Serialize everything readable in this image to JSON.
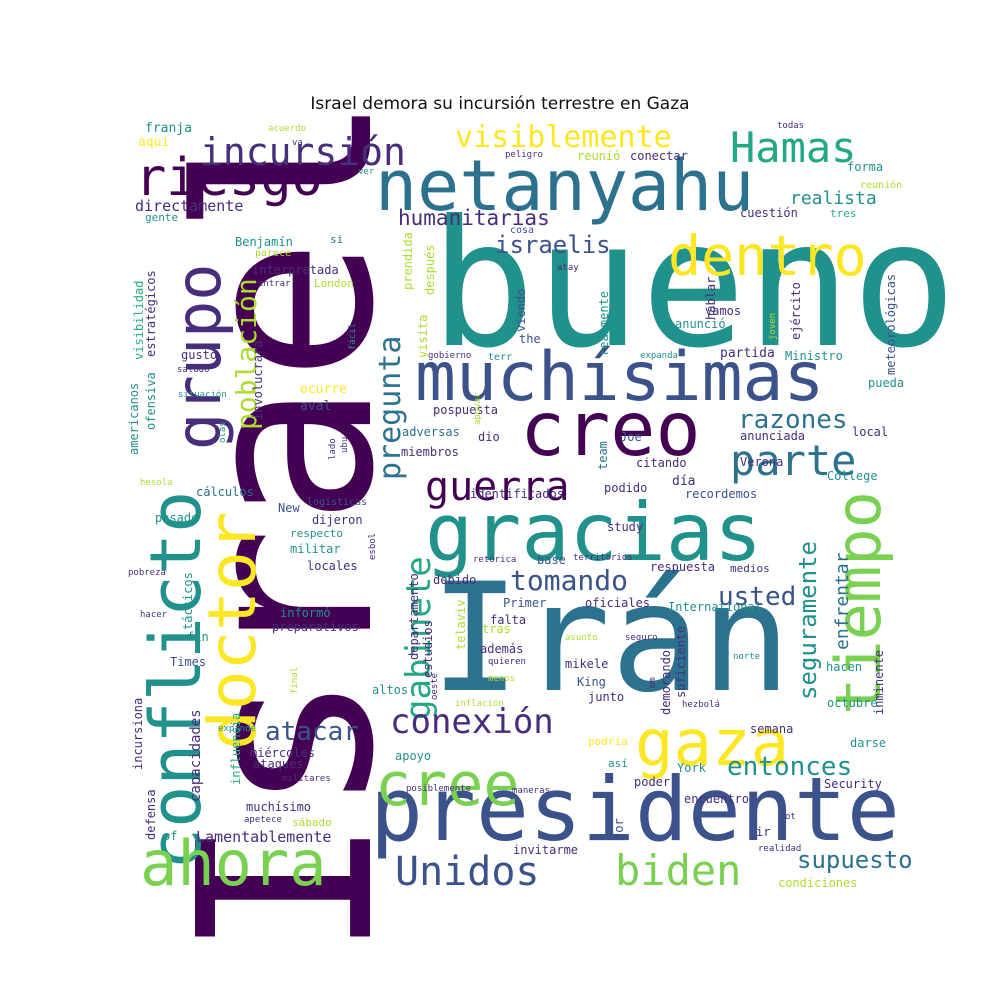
{
  "title": "Israel demora su incursión terrestre en Gaza",
  "palette": [
    "#440154",
    "#472d7b",
    "#3b528b",
    "#2c728e",
    "#21918c",
    "#28ae80",
    "#5ec962",
    "#addc30",
    "#fde725"
  ],
  "words": [
    {
      "t": "Israel",
      "c": "#440154"
    },
    {
      "t": "bueno",
      "c": "#21918c"
    },
    {
      "t": "Irán",
      "c": "#2c728e"
    },
    {
      "t": "presidente",
      "c": "#3b528b"
    },
    {
      "t": "gracias",
      "c": "#21918c"
    },
    {
      "t": "muchísimas",
      "c": "#3b528b"
    },
    {
      "t": "netanyahu",
      "c": "#2c728e"
    },
    {
      "t": "creo",
      "c": "#440154"
    },
    {
      "t": "conflicto",
      "c": "#21918c"
    },
    {
      "t": "doctor",
      "c": "#fde725"
    },
    {
      "t": "grupo",
      "c": "#472d7b"
    },
    {
      "t": "ahora",
      "c": "#7ad151"
    },
    {
      "t": "cree",
      "c": "#7ad151"
    },
    {
      "t": "tiempo",
      "c": "#7ad151"
    },
    {
      "t": "gaza",
      "c": "#fde725"
    },
    {
      "t": "riesgo",
      "c": "#440154"
    },
    {
      "t": "dentro",
      "c": "#fde725"
    },
    {
      "t": "Hamas",
      "c": "#22a884"
    },
    {
      "t": "parte",
      "c": "#2c728e"
    },
    {
      "t": "guerra",
      "c": "#440154"
    },
    {
      "t": "incursión",
      "c": "#472d7b"
    },
    {
      "t": "Unidos",
      "c": "#3b528b"
    },
    {
      "t": "biden",
      "c": "#7ad151"
    },
    {
      "t": "gabinete",
      "c": "#22a884"
    },
    {
      "t": "pregunta",
      "c": "#2c728e"
    },
    {
      "t": "población",
      "c": "#addc30"
    },
    {
      "t": "conexión",
      "c": "#472d7b"
    },
    {
      "t": "visiblemente",
      "c": "#fde725"
    },
    {
      "t": "razones",
      "c": "#2c728e"
    },
    {
      "t": "seguramente",
      "c": "#21918c"
    },
    {
      "t": "tomando",
      "c": "#3b528b"
    },
    {
      "t": "usted",
      "c": "#3b528b"
    },
    {
      "t": "entonces",
      "c": "#21918c"
    },
    {
      "t": "supuesto",
      "c": "#2c728e"
    },
    {
      "t": "atacar",
      "c": "#3b528b"
    },
    {
      "t": "israelis",
      "c": "#3b528b"
    },
    {
      "t": "humanitarias",
      "c": "#472d7b"
    },
    {
      "t": "enfrentar",
      "c": "#2c728e"
    },
    {
      "t": "directamente",
      "c": "#472d7b"
    },
    {
      "t": "realista",
      "c": "#21918c"
    },
    {
      "t": "Lamentablemente",
      "c": "#472d7b"
    },
    {
      "t": "capacidades",
      "c": "#472d7b"
    },
    {
      "t": "franja",
      "c": "#21918c"
    },
    {
      "t": "aquí",
      "c": "#fde725"
    },
    {
      "t": "peligro",
      "c": "#472d7b"
    },
    {
      "t": "reunió",
      "c": "#addc30"
    },
    {
      "t": "conectar",
      "c": "#472d7b"
    },
    {
      "t": "forma",
      "c": "#21918c"
    },
    {
      "t": "reunión",
      "c": "#addc30"
    },
    {
      "t": "tres",
      "c": "#28ae80"
    },
    {
      "t": "cuestión",
      "c": "#472d7b"
    },
    {
      "t": "gente",
      "c": "#21918c"
    },
    {
      "t": "Benjamín",
      "c": "#21918c"
    },
    {
      "t": "parece",
      "c": "#addc30"
    },
    {
      "t": "interpretada",
      "c": "#472d7b"
    },
    {
      "t": "London",
      "c": "#addc30"
    },
    {
      "t": "entrar",
      "c": "#472d7b"
    },
    {
      "t": "si",
      "c": "#2c728e"
    },
    {
      "t": "cosa",
      "c": "#3b528b"
    },
    {
      "t": "viendo",
      "c": "#3b528b"
    },
    {
      "t": "atay",
      "c": "#472d7b"
    },
    {
      "t": "hablar",
      "c": "#472d7b"
    },
    {
      "t": "ejército",
      "c": "#472d7b"
    },
    {
      "t": "meteorológicas",
      "c": "#3b528b"
    },
    {
      "t": "vamos",
      "c": "#472d7b"
    },
    {
      "t": "anunció",
      "c": "#21918c"
    },
    {
      "t": "joven",
      "c": "#addc30"
    },
    {
      "t": "partida",
      "c": "#472d7b"
    },
    {
      "t": "Ministro",
      "c": "#21918c"
    },
    {
      "t": "expanda",
      "c": "#21918c"
    },
    {
      "t": "gobierno",
      "c": "#472d7b"
    },
    {
      "t": "terr",
      "c": "#21918c"
    },
    {
      "t": "the",
      "c": "#3b528b"
    },
    {
      "t": "gusto",
      "c": "#472d7b"
    },
    {
      "t": "saludo",
      "c": "#472d7b"
    },
    {
      "t": "situación",
      "c": "#21918c"
    },
    {
      "t": "ocurre",
      "c": "#fde725"
    },
    {
      "t": "aval",
      "c": "#3b528b"
    },
    {
      "t": "pospuesta",
      "c": "#472d7b"
    },
    {
      "t": "adversas",
      "c": "#2c728e"
    },
    {
      "t": "dio",
      "c": "#472d7b"
    },
    {
      "t": "Joe",
      "c": "#3b528b"
    },
    {
      "t": "miembros",
      "c": "#472d7b"
    },
    {
      "t": "citando",
      "c": "#472d7b"
    },
    {
      "t": "local",
      "c": "#472d7b"
    },
    {
      "t": "anunciada",
      "c": "#472d7b"
    },
    {
      "t": "pueda",
      "c": "#21918c"
    },
    {
      "t": "Verona",
      "c": "#472d7b"
    },
    {
      "t": "College",
      "c": "#21918c"
    },
    {
      "t": "día",
      "c": "#472d7b"
    },
    {
      "t": "cálculos",
      "c": "#2c728e"
    },
    {
      "t": "identificados",
      "c": "#472d7b"
    },
    {
      "t": "podido",
      "c": "#472d7b"
    },
    {
      "t": "recordemos",
      "c": "#3b528b"
    },
    {
      "t": "logísticas",
      "c": "#3b528b"
    },
    {
      "t": "New",
      "c": "#3b528b"
    },
    {
      "t": "dijeron",
      "c": "#472d7b"
    },
    {
      "t": "respecto",
      "c": "#21918c"
    },
    {
      "t": "militar",
      "c": "#21918c"
    },
    {
      "t": "locales",
      "c": "#472d7b"
    },
    {
      "t": "pasado",
      "c": "#21918c"
    },
    {
      "t": "study",
      "c": "#472d7b"
    },
    {
      "t": "base",
      "c": "#3b528b"
    },
    {
      "t": "retórica",
      "c": "#472d7b"
    },
    {
      "t": "territorios",
      "c": "#472d7b"
    },
    {
      "t": "respuesta",
      "c": "#472d7b"
    },
    {
      "t": "medios",
      "c": "#472d7b"
    },
    {
      "t": "debido",
      "c": "#472d7b"
    },
    {
      "t": "Primer",
      "c": "#3b528b"
    },
    {
      "t": "oficiales",
      "c": "#472d7b"
    },
    {
      "t": "International",
      "c": "#21918c"
    },
    {
      "t": "informó",
      "c": "#21918c"
    },
    {
      "t": "preparativos",
      "c": "#472d7b"
    },
    {
      "t": "falta",
      "c": "#472d7b"
    },
    {
      "t": "tras",
      "c": "#addc30"
    },
    {
      "t": "fin",
      "c": "#21918c"
    },
    {
      "t": "Times",
      "c": "#3b528b"
    },
    {
      "t": "pobreza",
      "c": "#472d7b"
    },
    {
      "t": "hacer",
      "c": "#472d7b"
    },
    {
      "t": "además",
      "c": "#472d7b"
    },
    {
      "t": "quieren",
      "c": "#472d7b"
    },
    {
      "t": "mikele",
      "c": "#472d7b"
    },
    {
      "t": "King",
      "c": "#3b528b"
    },
    {
      "t": "junto",
      "c": "#472d7b"
    },
    {
      "t": "altos",
      "c": "#21918c"
    },
    {
      "t": "menos",
      "c": "#addc30"
    },
    {
      "t": "asunto",
      "c": "#addc30"
    },
    {
      "t": "seguro",
      "c": "#472d7b"
    },
    {
      "t": "norte",
      "c": "#21918c"
    },
    {
      "t": "hacen",
      "c": "#21918c"
    },
    {
      "t": "inminente",
      "c": "#472d7b"
    },
    {
      "t": "semana",
      "c": "#472d7b"
    },
    {
      "t": "octubre",
      "c": "#21918c"
    },
    {
      "t": "darse",
      "c": "#21918c"
    },
    {
      "t": "miércoles",
      "c": "#472d7b"
    },
    {
      "t": "ataques",
      "c": "#472d7b"
    },
    {
      "t": "apoyo",
      "c": "#21918c"
    },
    {
      "t": "podría",
      "c": "#fde725"
    },
    {
      "t": "así",
      "c": "#21918c"
    },
    {
      "t": "York",
      "c": "#21918c"
    },
    {
      "t": "poder",
      "c": "#472d7b"
    },
    {
      "t": "Security",
      "c": "#472d7b"
    },
    {
      "t": "encuentro",
      "c": "#472d7b"
    },
    {
      "t": "muchísimo",
      "c": "#472d7b"
    },
    {
      "t": "sábado",
      "c": "#addc30"
    },
    {
      "t": "invitarme",
      "c": "#472d7b"
    },
    {
      "t": "condiciones",
      "c": "#addc30"
    },
    {
      "t": "maneras",
      "c": "#472d7b"
    },
    {
      "t": "posiblemente",
      "c": "#472d7b"
    },
    {
      "t": "apetece",
      "c": "#472d7b"
    },
    {
      "t": "militares",
      "c": "#472d7b"
    },
    {
      "t": "realidad",
      "c": "#472d7b"
    },
    {
      "t": "of",
      "c": "#21918c"
    },
    {
      "t": "for",
      "c": "#3b528b"
    },
    {
      "t": "ir",
      "c": "#472d7b"
    },
    {
      "t": "acuerdo",
      "c": "#addc30"
    },
    {
      "t": "va",
      "c": "#472d7b"
    },
    {
      "t": "todas",
      "c": "#472d7b"
    },
    {
      "t": "ver",
      "c": "#21918c"
    },
    {
      "t": "expande",
      "c": "#21918c"
    },
    {
      "t": "hezbolá",
      "c": "#472d7b"
    },
    {
      "t": "inflación",
      "c": "#addc30"
    },
    {
      "t": "hesola",
      "c": "#addc30"
    },
    {
      "t": "estratégicos",
      "c": "#472d7b"
    },
    {
      "t": "visibilidad",
      "c": "#28ae80"
    },
    {
      "t": "americanos",
      "c": "#21918c"
    },
    {
      "t": "ofensiva",
      "c": "#21918c"
    },
    {
      "t": "involucrará",
      "c": "#472d7b"
    },
    {
      "t": "fácil",
      "c": "#21918c"
    },
    {
      "t": "visita",
      "c": "#addc30"
    },
    {
      "t": "prendida",
      "c": "#addc30"
    },
    {
      "t": "después",
      "c": "#addc30"
    },
    {
      "t": "realmente",
      "c": "#21918c"
    },
    {
      "t": "apoyar",
      "c": "#addc30"
    },
    {
      "t": "team",
      "c": "#2c728e"
    },
    {
      "t": "lado",
      "c": "#472d7b"
    },
    {
      "t": "ubu",
      "c": "#472d7b"
    },
    {
      "t": "olas",
      "c": "#21918c"
    },
    {
      "t": "esbol",
      "c": "#472d7b"
    },
    {
      "t": "departamento",
      "c": "#472d7b"
    },
    {
      "t": "estudios",
      "c": "#472d7b"
    },
    {
      "t": "telaviv",
      "c": "#addc30"
    },
    {
      "t": "oeste",
      "c": "#472d7b"
    },
    {
      "t": "mm",
      "c": "#472d7b"
    },
    {
      "t": "demorando",
      "c": "#472d7b"
    },
    {
      "t": "suficiente",
      "c": "#472d7b"
    },
    {
      "t": "tácticos",
      "c": "#21918c"
    },
    {
      "t": "incursiona",
      "c": "#472d7b"
    },
    {
      "t": "influencia",
      "c": "#28ae80"
    },
    {
      "t": "defensa",
      "c": "#472d7b"
    },
    {
      "t": "final",
      "c": "#addc30"
    },
    {
      "t": "ot",
      "c": "#472d7b"
    }
  ]
}
